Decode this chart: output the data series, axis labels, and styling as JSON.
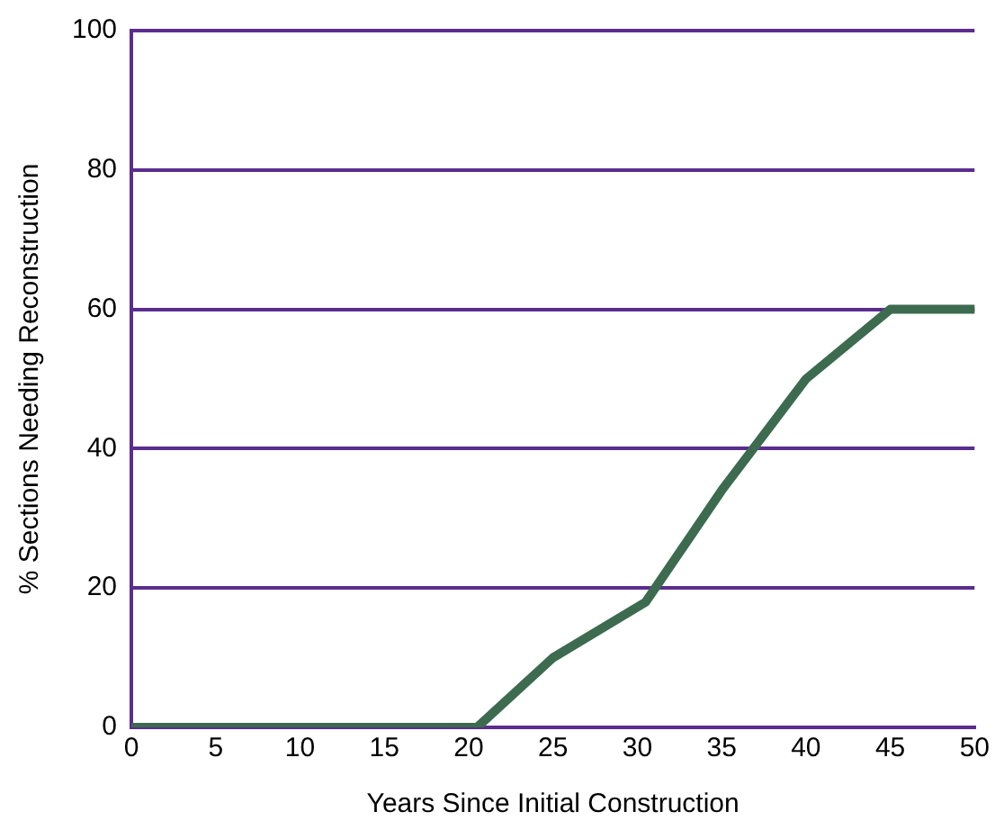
{
  "chart_data": {
    "type": "line",
    "xlabel": "Years Since Initial Construction",
    "ylabel": "% Sections Needing Reconstruction",
    "x": [
      0,
      20.5,
      25,
      30.5,
      35,
      40,
      45,
      50
    ],
    "series": [
      {
        "color": "#3d6b4f",
        "values": [
          0,
          0,
          10,
          18,
          34,
          50,
          60,
          60
        ]
      }
    ],
    "xlim": [
      0,
      50
    ],
    "xticks": [
      0,
      5,
      10,
      15,
      20,
      25,
      30,
      35,
      40,
      45,
      50
    ],
    "ylim": [
      0,
      100
    ],
    "yticks": [
      0,
      20,
      40,
      60,
      80,
      100
    ],
    "grid": "y",
    "legend": false,
    "marker": "none",
    "line_style": "solid"
  }
}
